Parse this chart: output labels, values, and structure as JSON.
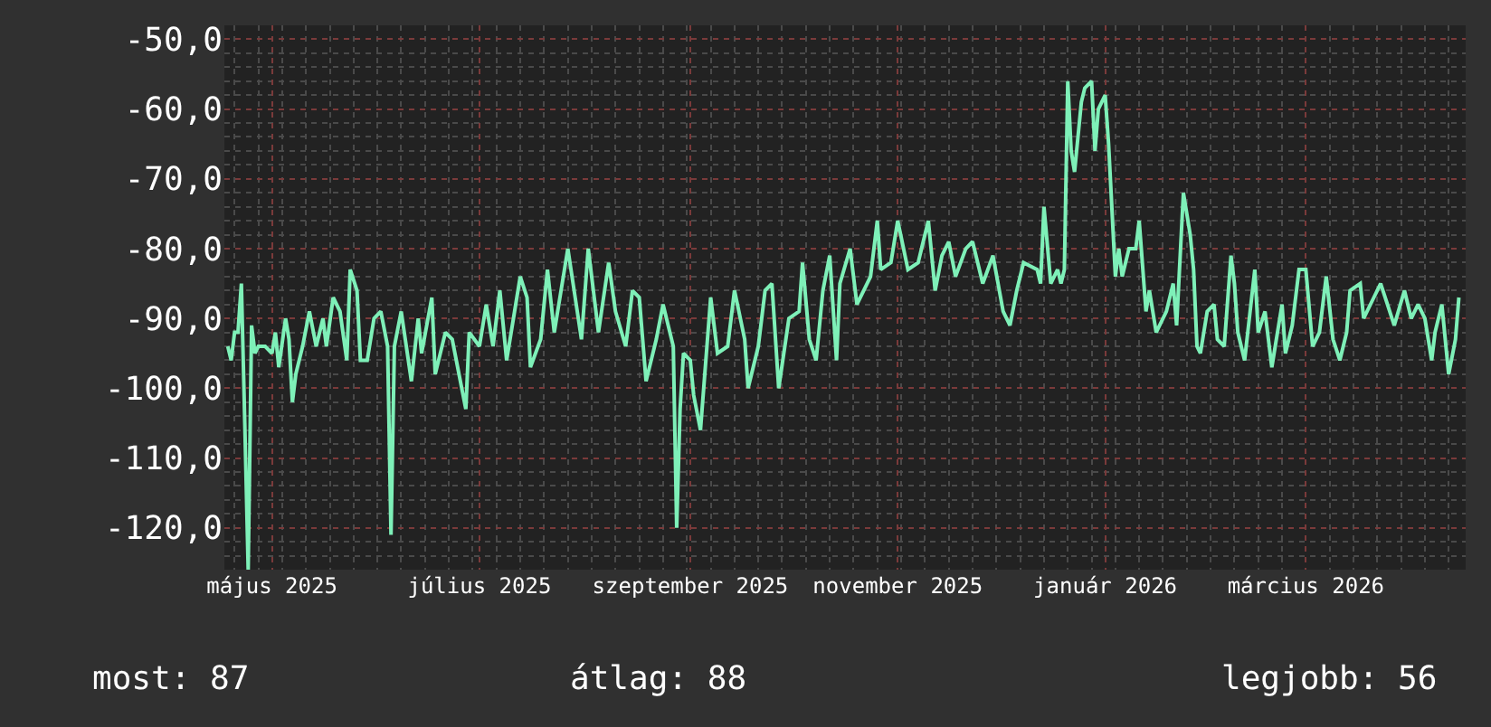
{
  "chart_data": {
    "type": "line",
    "x": [
      "2025-04-18",
      "2025-04-19",
      "2025-04-20",
      "2025-04-21",
      "2025-04-22",
      "2025-04-23",
      "2025-04-24",
      "2025-04-25",
      "2025-04-26",
      "2025-04-27",
      "2025-04-29",
      "2025-05-01",
      "2025-05-02",
      "2025-05-03",
      "2025-05-05",
      "2025-05-06",
      "2025-05-07",
      "2025-05-08",
      "2025-05-10",
      "2025-05-12",
      "2025-05-14",
      "2025-05-16",
      "2025-05-17",
      "2025-05-19",
      "2025-05-21",
      "2025-05-23",
      "2025-05-24",
      "2025-05-26",
      "2025-05-27",
      "2025-05-29",
      "2025-05-31",
      "2025-06-02",
      "2025-06-04",
      "2025-06-05",
      "2025-06-06",
      "2025-06-08",
      "2025-06-11",
      "2025-06-13",
      "2025-06-14",
      "2025-06-17",
      "2025-06-18",
      "2025-06-21",
      "2025-06-23",
      "2025-06-27",
      "2025-06-28",
      "2025-07-01",
      "2025-07-03",
      "2025-07-05",
      "2025-07-07",
      "2025-07-09",
      "2025-07-13",
      "2025-07-15",
      "2025-07-16",
      "2025-07-19",
      "2025-07-21",
      "2025-07-23",
      "2025-07-25",
      "2025-07-27",
      "2025-07-31",
      "2025-08-02",
      "2025-08-05",
      "2025-08-08",
      "2025-08-10",
      "2025-08-13",
      "2025-08-15",
      "2025-08-17",
      "2025-08-19",
      "2025-08-22",
      "2025-08-24",
      "2025-08-27",
      "2025-08-28",
      "2025-08-29",
      "2025-08-30",
      "2025-09-01",
      "2025-09-02",
      "2025-09-04",
      "2025-09-07",
      "2025-09-09",
      "2025-09-12",
      "2025-09-14",
      "2025-09-17",
      "2025-09-18",
      "2025-09-21",
      "2025-09-23",
      "2025-09-25",
      "2025-09-27",
      "2025-09-30",
      "2025-10-03",
      "2025-10-04",
      "2025-10-06",
      "2025-10-08",
      "2025-10-10",
      "2025-10-12",
      "2025-10-14",
      "2025-10-15",
      "2025-10-18",
      "2025-10-20",
      "2025-10-24",
      "2025-10-26",
      "2025-10-27",
      "2025-10-30",
      "2025-11-01",
      "2025-11-04",
      "2025-11-07",
      "2025-11-10",
      "2025-11-12",
      "2025-11-14",
      "2025-11-16",
      "2025-11-18",
      "2025-11-21",
      "2025-11-23",
      "2025-11-26",
      "2025-11-29",
      "2025-12-02",
      "2025-12-04",
      "2025-12-06",
      "2025-12-08",
      "2025-12-12",
      "2025-12-13",
      "2025-12-14",
      "2025-12-16",
      "2025-12-18",
      "2025-12-19",
      "2025-12-20",
      "2025-12-21",
      "2025-12-22",
      "2025-12-23",
      "2025-12-25",
      "2025-12-26",
      "2025-12-28",
      "2025-12-29",
      "2025-12-30",
      "2026-01-01",
      "2026-01-02",
      "2026-01-04",
      "2026-01-05",
      "2026-01-06",
      "2026-01-08",
      "2026-01-10",
      "2026-01-11",
      "2026-01-13",
      "2026-01-14",
      "2026-01-16",
      "2026-01-19",
      "2026-01-21",
      "2026-01-22",
      "2026-01-24",
      "2026-01-26",
      "2026-01-27",
      "2026-01-28",
      "2026-01-29",
      "2026-01-31",
      "2026-02-02",
      "2026-02-03",
      "2026-02-05",
      "2026-02-07",
      "2026-02-08",
      "2026-02-09",
      "2026-02-11",
      "2026-02-14",
      "2026-02-15",
      "2026-02-17",
      "2026-02-19",
      "2026-02-22",
      "2026-02-23",
      "2026-02-25",
      "2026-02-27",
      "2026-03-01",
      "2026-03-03",
      "2026-03-05",
      "2026-03-07",
      "2026-03-09",
      "2026-03-11",
      "2026-03-13",
      "2026-03-14",
      "2026-03-17",
      "2026-03-18",
      "2026-03-21",
      "2026-03-23",
      "2026-03-25",
      "2026-03-27",
      "2026-03-30",
      "2026-04-01",
      "2026-04-03",
      "2026-04-05",
      "2026-04-07",
      "2026-04-08",
      "2026-04-10",
      "2026-04-12",
      "2026-04-14",
      "2026-04-15"
    ],
    "series": [
      {
        "color": "#7ef0b8",
        "values": [
          -94,
          -96,
          -92,
          -92,
          -85,
          -105,
          -126,
          -91,
          -95,
          -94,
          -94,
          -95,
          -92,
          -97,
          -90,
          -93,
          -102,
          -98,
          -94,
          -89,
          -94,
          -90,
          -94,
          -87,
          -89,
          -96,
          -83,
          -86,
          -96,
          -96,
          -90,
          -89,
          -94,
          -121,
          -94,
          -89,
          -99,
          -90,
          -95,
          -87,
          -98,
          -92,
          -93,
          -103,
          -92,
          -94,
          -88,
          -94,
          -86,
          -96,
          -84,
          -87,
          -97,
          -93,
          -83,
          -92,
          -86,
          -80,
          -93,
          -80,
          -92,
          -82,
          -89,
          -94,
          -86,
          -87,
          -99,
          -93,
          -88,
          -94,
          -120,
          -103,
          -95,
          -96,
          -101,
          -106,
          -87,
          -95,
          -94,
          -86,
          -93,
          -100,
          -94,
          -86,
          -85,
          -100,
          -90,
          -89,
          -82,
          -93,
          -96,
          -86,
          -81,
          -96,
          -85,
          -80,
          -88,
          -84,
          -76,
          -83,
          -82,
          -76,
          -83,
          -82,
          -76,
          -86,
          -81,
          -79,
          -84,
          -80,
          -79,
          -85,
          -81,
          -89,
          -91,
          -86,
          -82,
          -83,
          -85,
          -74,
          -85,
          -83,
          -85,
          -83,
          -56,
          -66,
          -69,
          -59,
          -57,
          -56,
          -66,
          -60,
          -58,
          -65,
          -84,
          -80,
          -84,
          -80,
          -80,
          -76,
          -89,
          -86,
          -92,
          -89,
          -85,
          -91,
          -72,
          -78,
          -83,
          -94,
          -95,
          -89,
          -88,
          -93,
          -94,
          -81,
          -85,
          -92,
          -96,
          -83,
          -92,
          -89,
          -97,
          -88,
          -95,
          -91,
          -83,
          -83,
          -94,
          -92,
          -84,
          -93,
          -96,
          -92,
          -86,
          -85,
          -90,
          -87,
          -85,
          -88,
          -91,
          -86,
          -90,
          -88,
          -90,
          -96,
          -92,
          -88,
          -98,
          -93,
          -87
        ]
      }
    ],
    "xlim": [
      "2025-04-17",
      "2026-04-17"
    ],
    "xticks": [
      {
        "value": "2025-05-01",
        "label": "május 2025"
      },
      {
        "value": "2025-07-01",
        "label": "július 2025"
      },
      {
        "value": "2025-09-01",
        "label": "szeptember 2025"
      },
      {
        "value": "2025-11-01",
        "label": "november 2025"
      },
      {
        "value": "2026-01-01",
        "label": "január 2026"
      },
      {
        "value": "2026-03-01",
        "label": "március 2026"
      }
    ],
    "ylim": [
      -126,
      -48
    ],
    "yticks": [
      {
        "value": -50,
        "label": "-50,0"
      },
      {
        "value": -60,
        "label": "-60,0"
      },
      {
        "value": -70,
        "label": "-70,0"
      },
      {
        "value": -80,
        "label": "-80,0"
      },
      {
        "value": -90,
        "label": "-90,0"
      },
      {
        "value": -100,
        "label": "-100,0"
      },
      {
        "value": -110,
        "label": "-110,0"
      },
      {
        "value": -120,
        "label": "-120,0"
      }
    ],
    "grid": true,
    "annotations": [
      "most: 87",
      "átlag: 88",
      "legjobb: 56"
    ]
  }
}
